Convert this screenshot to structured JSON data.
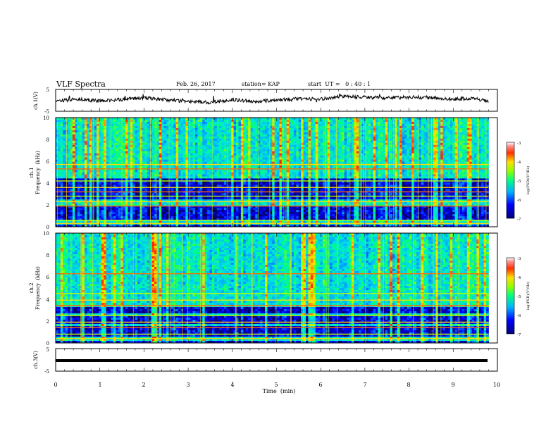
{
  "header": {
    "title": "VLF Spectra",
    "date": "Feb. 26, 2017",
    "station": "station= KAP",
    "start": "start  UT =   0 : 40 : 1"
  },
  "chart_data": [
    {
      "type": "line",
      "panel": "ch1-waveform",
      "ylabel": "ch.1(V)",
      "ylim": [
        -5,
        5
      ],
      "yticks": [
        "5",
        "-5"
      ],
      "x": [
        0.0,
        0.5,
        1.0,
        1.5,
        2.0,
        2.5,
        3.0,
        3.5,
        4.0,
        4.5,
        5.0,
        5.5,
        6.0,
        6.5,
        7.0,
        7.5,
        8.0,
        8.5,
        9.0,
        9.5,
        9.8
      ],
      "values": [
        -0.4,
        0.6,
        -0.3,
        0.5,
        1.2,
        0.2,
        -0.6,
        -0.9,
        0.3,
        -0.5,
        0.1,
        0.8,
        0.6,
        1.8,
        1.4,
        1.0,
        1.5,
        1.2,
        0.6,
        0.9,
        -0.6
      ]
    },
    {
      "type": "heatmap",
      "panel": "ch1-spectrogram",
      "ylabel_line1": "ch.1",
      "ylabel_line2": "Frequency  (kHz)",
      "ylim": [
        0,
        10
      ],
      "yticks": [
        "0",
        "2",
        "4",
        "6",
        "8",
        "10"
      ],
      "colorbar": {
        "label": "log(PSD)(V²/Hz)",
        "range": [
          -7,
          -3
        ],
        "ticks": [
          "-3",
          "-4",
          "-5",
          "-6",
          "-7"
        ]
      },
      "bands_khz": [
        0.3,
        0.6,
        1.9,
        2.3,
        2.8,
        3.2,
        3.6,
        4.2,
        5.3,
        5.7
      ]
    },
    {
      "type": "heatmap",
      "panel": "ch2-spectrogram",
      "ylabel_line1": "ch.2",
      "ylabel_line2": "Frequency  (kHz)",
      "ylim": [
        0,
        10
      ],
      "yticks": [
        "0",
        "2",
        "4",
        "6",
        "8",
        "10"
      ],
      "colorbar": {
        "label": "log(PSD)(V²/Hz)",
        "range": [
          -7,
          -3
        ],
        "ticks": [
          "-3",
          "-4",
          "-5",
          "-6",
          "-7"
        ]
      },
      "bands_khz": [
        0.4,
        0.8,
        1.4,
        1.9,
        2.5,
        3.4,
        3.9,
        4.5,
        6.3
      ]
    },
    {
      "type": "line",
      "panel": "ch3-waveform",
      "ylabel": "ch.3(V)",
      "ylim": [
        -5,
        5
      ],
      "yticks": [
        "5",
        "-5"
      ],
      "x": [
        0,
        9.8
      ],
      "values": [
        -1,
        -1
      ]
    }
  ],
  "x_axis": {
    "label": "Time  (min)",
    "range": [
      0,
      10
    ],
    "ticks": [
      "0",
      "1",
      "2",
      "3",
      "4",
      "5",
      "6",
      "7",
      "8",
      "9",
      "10"
    ]
  },
  "colors": {
    "colormap": [
      "#1a0066",
      "#0000ff",
      "#00a0ff",
      "#00e0e0",
      "#00ff80",
      "#c0ff00",
      "#ffe000",
      "#ff5000",
      "#ff0000",
      "#ffffff"
    ]
  }
}
